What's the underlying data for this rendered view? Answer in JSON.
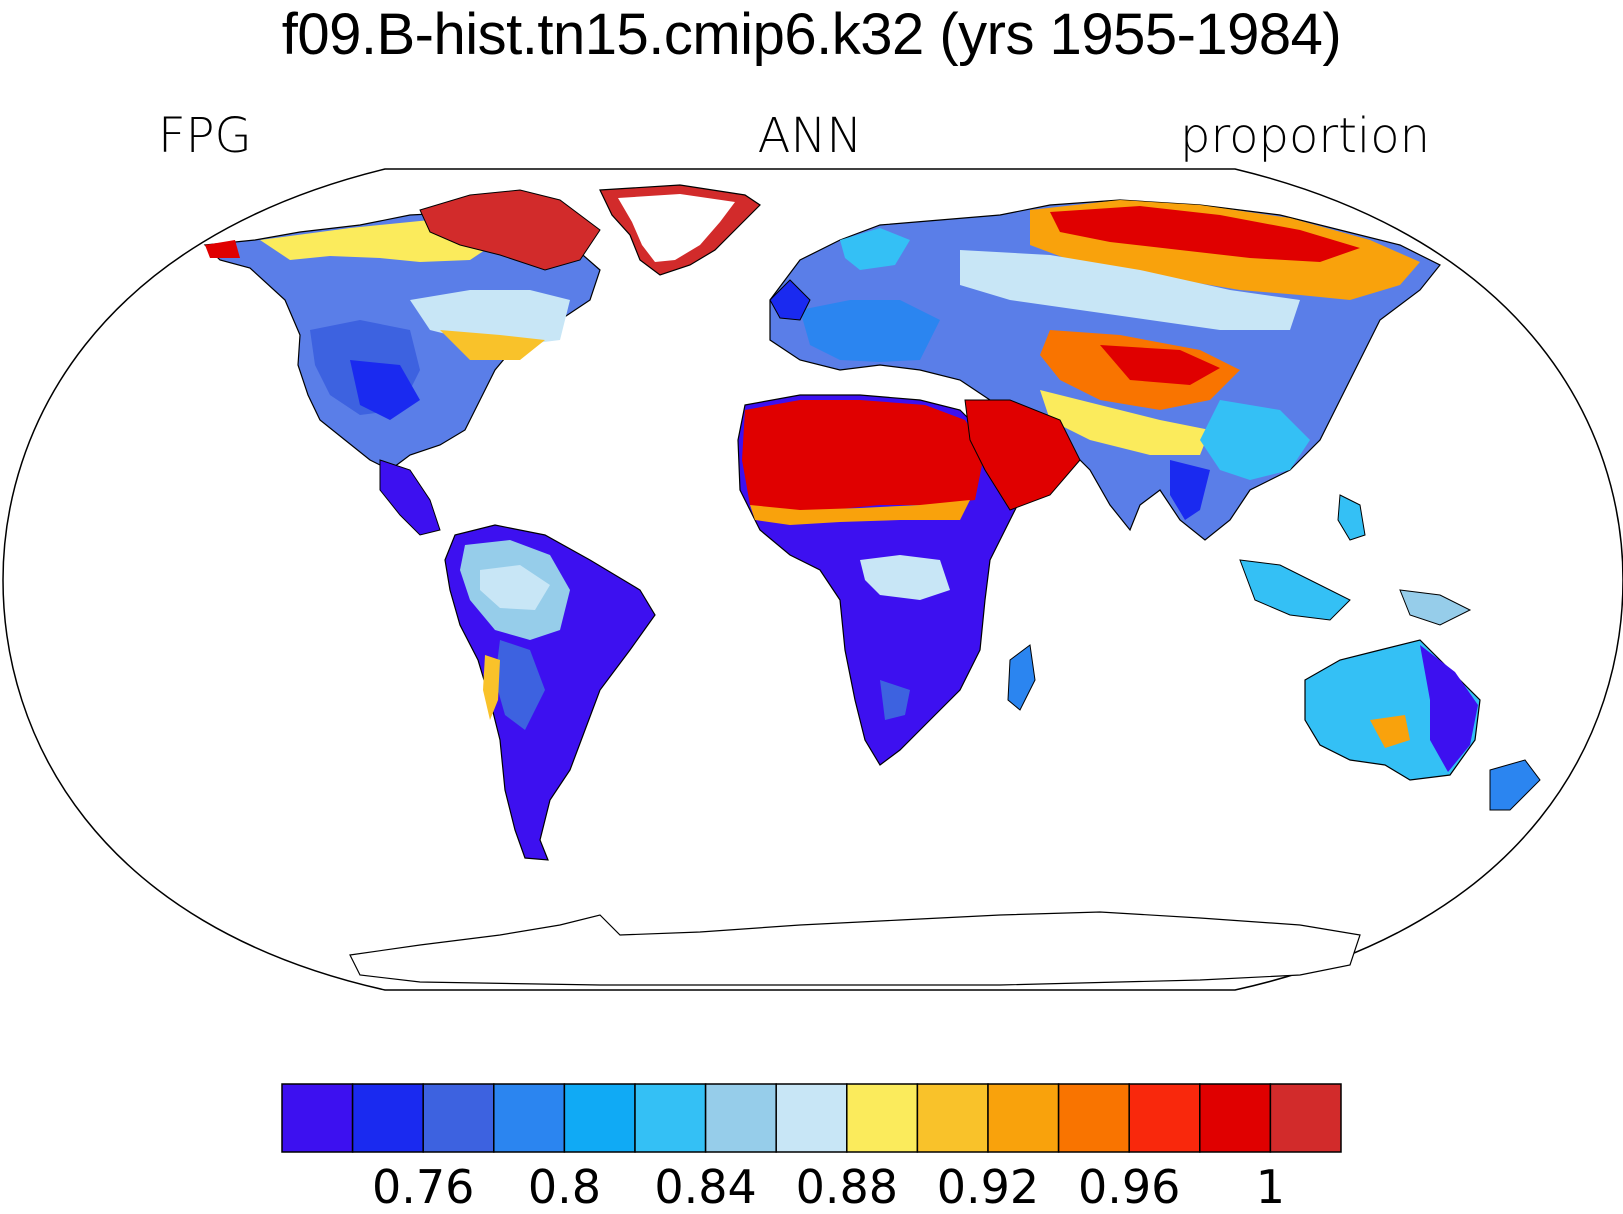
{
  "title": "f09.B-hist.tn15.cmip6.k32 (yrs 1955-1984)",
  "left_string": "FPG",
  "center_string": "ANN",
  "right_string": "proportion",
  "projection": "robinson",
  "colorbar": {
    "colors": [
      "#3d10f0",
      "#1a2af0",
      "#3d62e0",
      "#2b85f0",
      "#10aaf5",
      "#34c0f5",
      "#96cdea",
      "#c8e6f6",
      "#fbeb5c",
      "#f9c22a",
      "#f9a20c",
      "#f97400",
      "#f9280c",
      "#e00000",
      "#d22b2b"
    ],
    "tick_labels": [
      "0.76",
      "0.8",
      "0.84",
      "0.88",
      "0.92",
      "0.96",
      "1"
    ],
    "tick_label_positions_after_box": [
      2,
      4,
      6,
      8,
      10,
      12,
      14
    ]
  }
}
